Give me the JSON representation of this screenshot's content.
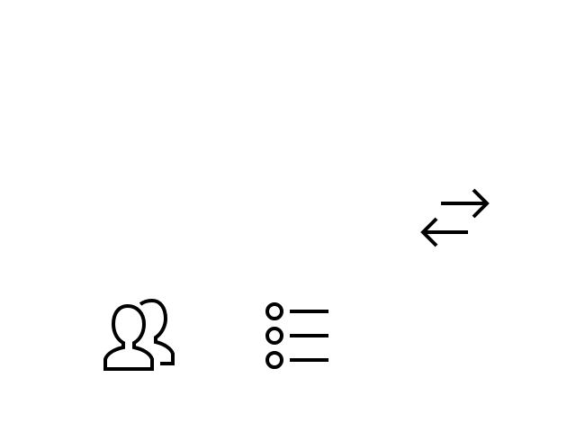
{
  "icons": {
    "swap": "swap-arrows-icon",
    "people": "people-icon",
    "list": "list-icon"
  },
  "colors": {
    "background": "#ffffff",
    "icon_stroke": "#000000"
  }
}
